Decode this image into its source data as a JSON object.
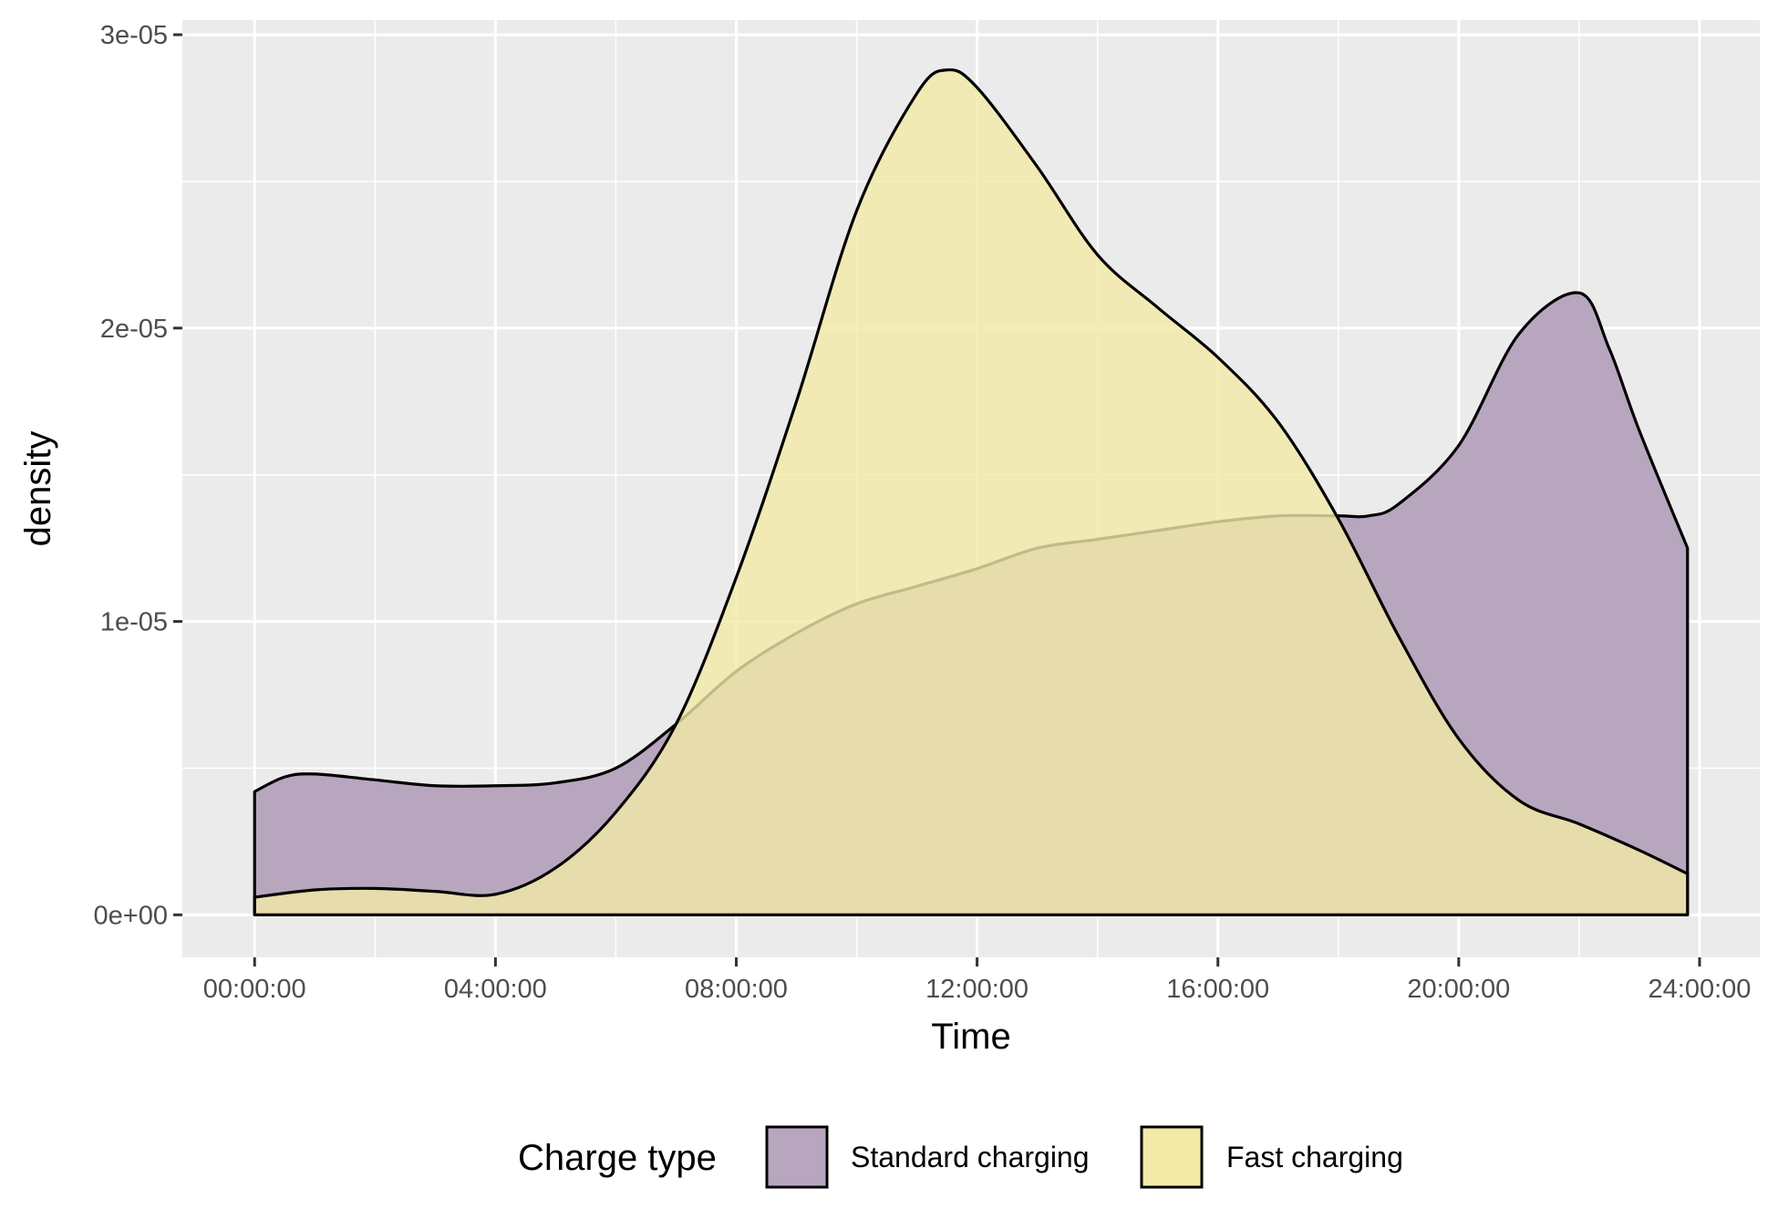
{
  "chart_data": {
    "type": "area",
    "subtype": "density",
    "title": "",
    "xlabel": "Time",
    "ylabel": "density",
    "x_unit": "hours since 00:00:00",
    "xlim": [
      -1.2,
      25.0
    ],
    "ylim": [
      -1.45e-06,
      3.05e-05
    ],
    "x_ticks": [
      {
        "value": 0,
        "label": "00:00:00"
      },
      {
        "value": 4,
        "label": "04:00:00"
      },
      {
        "value": 8,
        "label": "08:00:00"
      },
      {
        "value": 12,
        "label": "12:00:00"
      },
      {
        "value": 16,
        "label": "16:00:00"
      },
      {
        "value": 20,
        "label": "20:00:00"
      },
      {
        "value": 24,
        "label": "24:00:00"
      }
    ],
    "y_ticks": [
      {
        "value": 0,
        "label": "0e+00"
      },
      {
        "value": 1e-05,
        "label": "1e-05"
      },
      {
        "value": 2e-05,
        "label": "2e-05"
      },
      {
        "value": 3e-05,
        "label": "3e-05"
      }
    ],
    "grid": true,
    "legend": {
      "title": "Charge type",
      "position": "bottom"
    },
    "series": [
      {
        "name": "Standard charging",
        "color": "#b8a6bf",
        "x": [
          0,
          0.5,
          1,
          2,
          3,
          4,
          5,
          6,
          7,
          8,
          9,
          10,
          11,
          12,
          13,
          14,
          15,
          16,
          17,
          18,
          18.5,
          19,
          20,
          21,
          22,
          22.5,
          23,
          23.8
        ],
        "y": [
          4.2e-06,
          4.7e-06,
          4.8e-06,
          4.6e-06,
          4.4e-06,
          4.4e-06,
          4.5e-06,
          5e-06,
          6.5e-06,
          8.3e-06,
          9.6e-06,
          1.06e-05,
          1.12e-05,
          1.18e-05,
          1.25e-05,
          1.28e-05,
          1.31e-05,
          1.34e-05,
          1.36e-05,
          1.36e-05,
          1.36e-05,
          1.4e-05,
          1.6e-05,
          1.98e-05,
          2.12e-05,
          1.93e-05,
          1.65e-05,
          1.25e-05
        ]
      },
      {
        "name": "Fast charging",
        "color": "#f2eaa6",
        "x": [
          0,
          1,
          2,
          3,
          4,
          5,
          6,
          7,
          8,
          9,
          10,
          11,
          11.5,
          12,
          13,
          14,
          15,
          16,
          17,
          18,
          19,
          20,
          21,
          22,
          23,
          23.8
        ],
        "y": [
          6e-07,
          8.5e-07,
          9e-07,
          8e-07,
          7e-07,
          1.6e-06,
          3.5e-06,
          6.5e-06,
          1.15e-05,
          1.75e-05,
          2.4e-05,
          2.8e-05,
          2.88e-05,
          2.82e-05,
          2.55e-05,
          2.25e-05,
          2.07e-05,
          1.9e-05,
          1.68e-05,
          1.35e-05,
          9.5e-06,
          6e-06,
          3.9e-06,
          3.1e-06,
          2.2e-06,
          1.4e-06
        ]
      }
    ]
  }
}
